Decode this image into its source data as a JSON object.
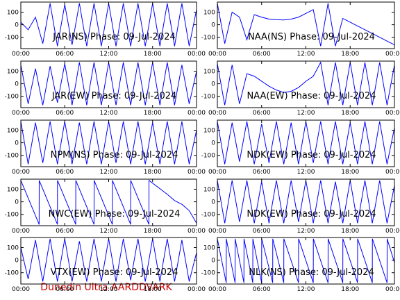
{
  "chart_data": [
    {
      "type": "line",
      "title": "JAR(NS) Phase: 09-Jul-2024",
      "color": "#0000ff",
      "x": [
        0,
        1,
        2,
        3,
        4,
        5,
        6,
        7,
        8,
        9,
        10,
        11,
        12,
        13,
        14,
        15,
        16,
        17,
        18,
        19,
        20,
        21,
        22,
        23,
        24
      ],
      "values": [
        20,
        -40,
        60,
        -150,
        170,
        -170,
        160,
        -160,
        170,
        -170,
        170,
        -170,
        170,
        -170,
        170,
        -170,
        170,
        -170,
        170,
        -170,
        170,
        -170,
        170,
        -170,
        120
      ],
      "xlim": [
        0,
        24
      ],
      "ylim": [
        -190,
        180
      ],
      "xticks": [
        {
          "value": 0,
          "label": "00:00"
        },
        {
          "value": 6,
          "label": "06:00"
        },
        {
          "value": 12,
          "label": "12:00"
        },
        {
          "value": 18,
          "label": "18:00"
        },
        {
          "value": 24,
          "label": "00:00"
        }
      ],
      "yticks": [
        100,
        0,
        -100
      ]
    },
    {
      "type": "line",
      "title": "NAA(NS) Phase: 09-Jul-2024",
      "color": "#0000ff",
      "x": [
        0,
        1,
        2,
        3,
        4,
        5,
        6,
        7,
        8,
        9,
        10,
        11,
        12,
        13,
        14,
        15,
        16,
        17,
        18,
        19,
        20,
        21,
        22,
        23,
        24
      ],
      "values": [
        170,
        -150,
        100,
        60,
        -120,
        80,
        60,
        45,
        40,
        38,
        45,
        60,
        90,
        120,
        -170,
        170,
        -170,
        50,
        20,
        -10,
        -40,
        -70,
        -100,
        -130,
        -160
      ],
      "xlim": [
        0,
        24
      ],
      "ylim": [
        -190,
        180
      ],
      "xticks": [
        {
          "value": 0,
          "label": "00:00"
        },
        {
          "value": 6,
          "label": "06:00"
        },
        {
          "value": 12,
          "label": "12:00"
        },
        {
          "value": 18,
          "label": "18:00"
        },
        {
          "value": 24,
          "label": "00:00"
        }
      ],
      "yticks": [
        100,
        0,
        -100
      ]
    },
    {
      "type": "line",
      "title": "JAR(EW) Phase: 09-Jul-2024",
      "color": "#0000ff",
      "x": [
        0,
        1,
        2,
        3,
        4,
        5,
        6,
        7,
        8,
        9,
        10,
        11,
        12,
        13,
        14,
        15,
        16,
        17,
        18,
        19,
        20,
        21,
        22,
        23,
        24
      ],
      "values": [
        150,
        -160,
        120,
        -170,
        140,
        -150,
        160,
        -170,
        170,
        -170,
        170,
        -170,
        170,
        -170,
        170,
        -170,
        170,
        -170,
        170,
        -170,
        170,
        -170,
        150,
        -160,
        100
      ],
      "xlim": [
        0,
        24
      ],
      "ylim": [
        -190,
        180
      ],
      "xticks": [
        {
          "value": 0,
          "label": "00:00"
        },
        {
          "value": 6,
          "label": "06:00"
        },
        {
          "value": 12,
          "label": "12:00"
        },
        {
          "value": 18,
          "label": "18:00"
        },
        {
          "value": 24,
          "label": "00:00"
        }
      ],
      "yticks": [
        100,
        0,
        -100
      ]
    },
    {
      "type": "line",
      "title": "NAA(EW) Phase: 09-Jul-2024",
      "color": "#0000ff",
      "x": [
        0,
        1,
        2,
        3,
        4,
        5,
        6,
        7,
        8,
        9,
        10,
        11,
        12,
        13,
        14,
        15,
        16,
        17,
        18,
        19,
        20,
        21,
        22,
        23,
        24
      ],
      "values": [
        160,
        -170,
        150,
        -160,
        80,
        60,
        20,
        -20,
        -50,
        -70,
        -60,
        -30,
        20,
        60,
        170,
        -170,
        170,
        -170,
        170,
        -170,
        170,
        -170,
        170,
        -170,
        150
      ],
      "xlim": [
        0,
        24
      ],
      "ylim": [
        -190,
        180
      ],
      "xticks": [
        {
          "value": 0,
          "label": "00:00"
        },
        {
          "value": 6,
          "label": "06:00"
        },
        {
          "value": 12,
          "label": "12:00"
        },
        {
          "value": 18,
          "label": "18:00"
        },
        {
          "value": 24,
          "label": "00:00"
        }
      ],
      "yticks": [
        100,
        0,
        -100
      ]
    },
    {
      "type": "line",
      "title": "NPM(NS) Phase: 09-Jul-2024",
      "color": "#0000ff",
      "x": [
        0,
        1,
        2,
        3,
        4,
        5,
        6,
        7,
        8,
        9,
        10,
        11,
        12,
        13,
        14,
        15,
        16,
        17,
        18,
        19,
        20,
        21,
        22,
        23,
        24
      ],
      "values": [
        170,
        -170,
        160,
        -160,
        170,
        -170,
        170,
        -170,
        160,
        -170,
        170,
        -170,
        170,
        -160,
        170,
        -170,
        170,
        -170,
        160,
        -170,
        170,
        -170,
        170,
        -170,
        100
      ],
      "xlim": [
        0,
        24
      ],
      "ylim": [
        -190,
        180
      ],
      "xticks": [
        {
          "value": 0,
          "label": "00:00"
        },
        {
          "value": 6,
          "label": "06:00"
        },
        {
          "value": 12,
          "label": "12:00"
        },
        {
          "value": 18,
          "label": "18:00"
        },
        {
          "value": 24,
          "label": "00:00"
        }
      ],
      "yticks": [
        100,
        0,
        -100
      ]
    },
    {
      "type": "line",
      "title": "NDK(EW) Phase: 09-Jul-2024",
      "color": "#0000ff",
      "x": [
        0,
        1,
        2,
        3,
        4,
        5,
        6,
        7,
        8,
        9,
        10,
        11,
        12,
        13,
        14,
        15,
        16,
        17,
        18,
        19,
        20,
        21,
        22,
        23,
        24
      ],
      "values": [
        170,
        -170,
        160,
        -150,
        170,
        -170,
        150,
        -160,
        170,
        -170,
        160,
        -170,
        170,
        -160,
        170,
        -170,
        170,
        -170,
        160,
        -170,
        170,
        -170,
        170,
        -170,
        120
      ],
      "xlim": [
        0,
        24
      ],
      "ylim": [
        -190,
        180
      ],
      "xticks": [
        {
          "value": 0,
          "label": "00:00"
        },
        {
          "value": 6,
          "label": "06:00"
        },
        {
          "value": 12,
          "label": "12:00"
        },
        {
          "value": 18,
          "label": "18:00"
        },
        {
          "value": 24,
          "label": "00:00"
        }
      ],
      "yticks": [
        100,
        0,
        -100
      ]
    },
    {
      "type": "line",
      "title": "NWC(EW) Phase: 09-Jul-2024",
      "color": "#0000ff",
      "x": [
        0,
        2.5,
        2.51,
        5,
        5.01,
        7.5,
        7.51,
        10,
        10.01,
        12.5,
        12.51,
        15,
        15.01,
        17.5,
        17.51,
        20,
        21,
        22,
        23,
        24
      ],
      "values": [
        170,
        -180,
        170,
        -180,
        170,
        -180,
        170,
        -180,
        170,
        -180,
        170,
        -180,
        170,
        -180,
        170,
        60,
        10,
        -20,
        -70,
        -170
      ],
      "xlim": [
        0,
        24
      ],
      "ylim": [
        -190,
        180
      ],
      "xticks": [
        {
          "value": 0,
          "label": "00:00"
        },
        {
          "value": 6,
          "label": "06:00"
        },
        {
          "value": 12,
          "label": "12:00"
        },
        {
          "value": 18,
          "label": "18:00"
        },
        {
          "value": 24,
          "label": "00:00"
        }
      ],
      "yticks": [
        100,
        0,
        -100
      ]
    },
    {
      "type": "line",
      "title": "NDK(EW) Phase: 09-Jul-2024",
      "color": "#0000ff",
      "x": [
        0,
        1,
        2,
        3,
        4,
        5,
        6,
        7,
        8,
        9,
        10,
        11,
        12,
        13,
        14,
        15,
        16,
        17,
        18,
        19,
        20,
        21,
        22,
        23,
        24
      ],
      "values": [
        170,
        -170,
        170,
        -160,
        170,
        -170,
        160,
        -170,
        170,
        -170,
        170,
        -160,
        170,
        -170,
        170,
        -170,
        160,
        -170,
        170,
        -170,
        170,
        -170,
        170,
        -170,
        130
      ],
      "xlim": [
        0,
        24
      ],
      "ylim": [
        -190,
        180
      ],
      "xticks": [
        {
          "value": 0,
          "label": "00:00"
        },
        {
          "value": 6,
          "label": "06:00"
        },
        {
          "value": 12,
          "label": "12:00"
        },
        {
          "value": 18,
          "label": "18:00"
        },
        {
          "value": 24,
          "label": "00:00"
        }
      ],
      "yticks": [
        100,
        0,
        -100
      ]
    },
    {
      "type": "line",
      "title": "VTX(EW) Phase: 09-Jul-2024",
      "color": "#0000ff",
      "x": [
        0,
        1,
        2,
        3,
        4,
        5,
        6,
        7,
        8,
        9,
        10,
        11,
        12,
        13,
        14,
        15,
        16,
        17,
        18,
        19,
        20,
        21,
        22,
        23,
        24
      ],
      "values": [
        100,
        -150,
        160,
        -170,
        170,
        -170,
        170,
        -170,
        150,
        -170,
        170,
        -170,
        170,
        -170,
        170,
        -160,
        170,
        -170,
        170,
        -170,
        170,
        -170,
        160,
        -170,
        60
      ],
      "xlim": [
        0,
        24
      ],
      "ylim": [
        -190,
        180
      ],
      "xticks": [
        {
          "value": 0,
          "label": "00:00"
        },
        {
          "value": 6,
          "label": "06:00"
        },
        {
          "value": 12,
          "label": "12:00"
        },
        {
          "value": 18,
          "label": "18:00"
        },
        {
          "value": 24,
          "label": "00:00"
        }
      ],
      "yticks": [
        100,
        0,
        -100
      ]
    },
    {
      "type": "line",
      "title": "NLK(NS) Phase: 09-Jul-2024",
      "color": "#0000ff",
      "x": [
        0,
        1.2,
        1.21,
        2.4,
        2.41,
        3.6,
        3.61,
        4.8,
        4.81,
        6,
        6.01,
        7.5,
        7.51,
        9,
        9.01,
        11,
        11.01,
        13,
        13.01,
        15,
        15.01,
        17,
        17.01,
        19,
        19.01,
        21,
        21.01,
        23,
        23.01,
        24
      ],
      "values": [
        170,
        -180,
        170,
        -180,
        170,
        -180,
        170,
        -180,
        170,
        -180,
        170,
        -180,
        170,
        -180,
        170,
        -180,
        170,
        -180,
        170,
        -180,
        170,
        -180,
        170,
        -180,
        170,
        -180,
        170,
        -180,
        170,
        -20
      ],
      "xlim": [
        0,
        24
      ],
      "ylim": [
        -190,
        180
      ],
      "xticks": [
        {
          "value": 0,
          "label": "00:00"
        },
        {
          "value": 6,
          "label": "06:00"
        },
        {
          "value": 12,
          "label": "12:00"
        },
        {
          "value": 18,
          "label": "18:00"
        },
        {
          "value": 24,
          "label": "00:00"
        }
      ],
      "yticks": [
        100,
        0,
        -100
      ]
    }
  ],
  "footer": "Dunedin Ultra AARDDVARK"
}
